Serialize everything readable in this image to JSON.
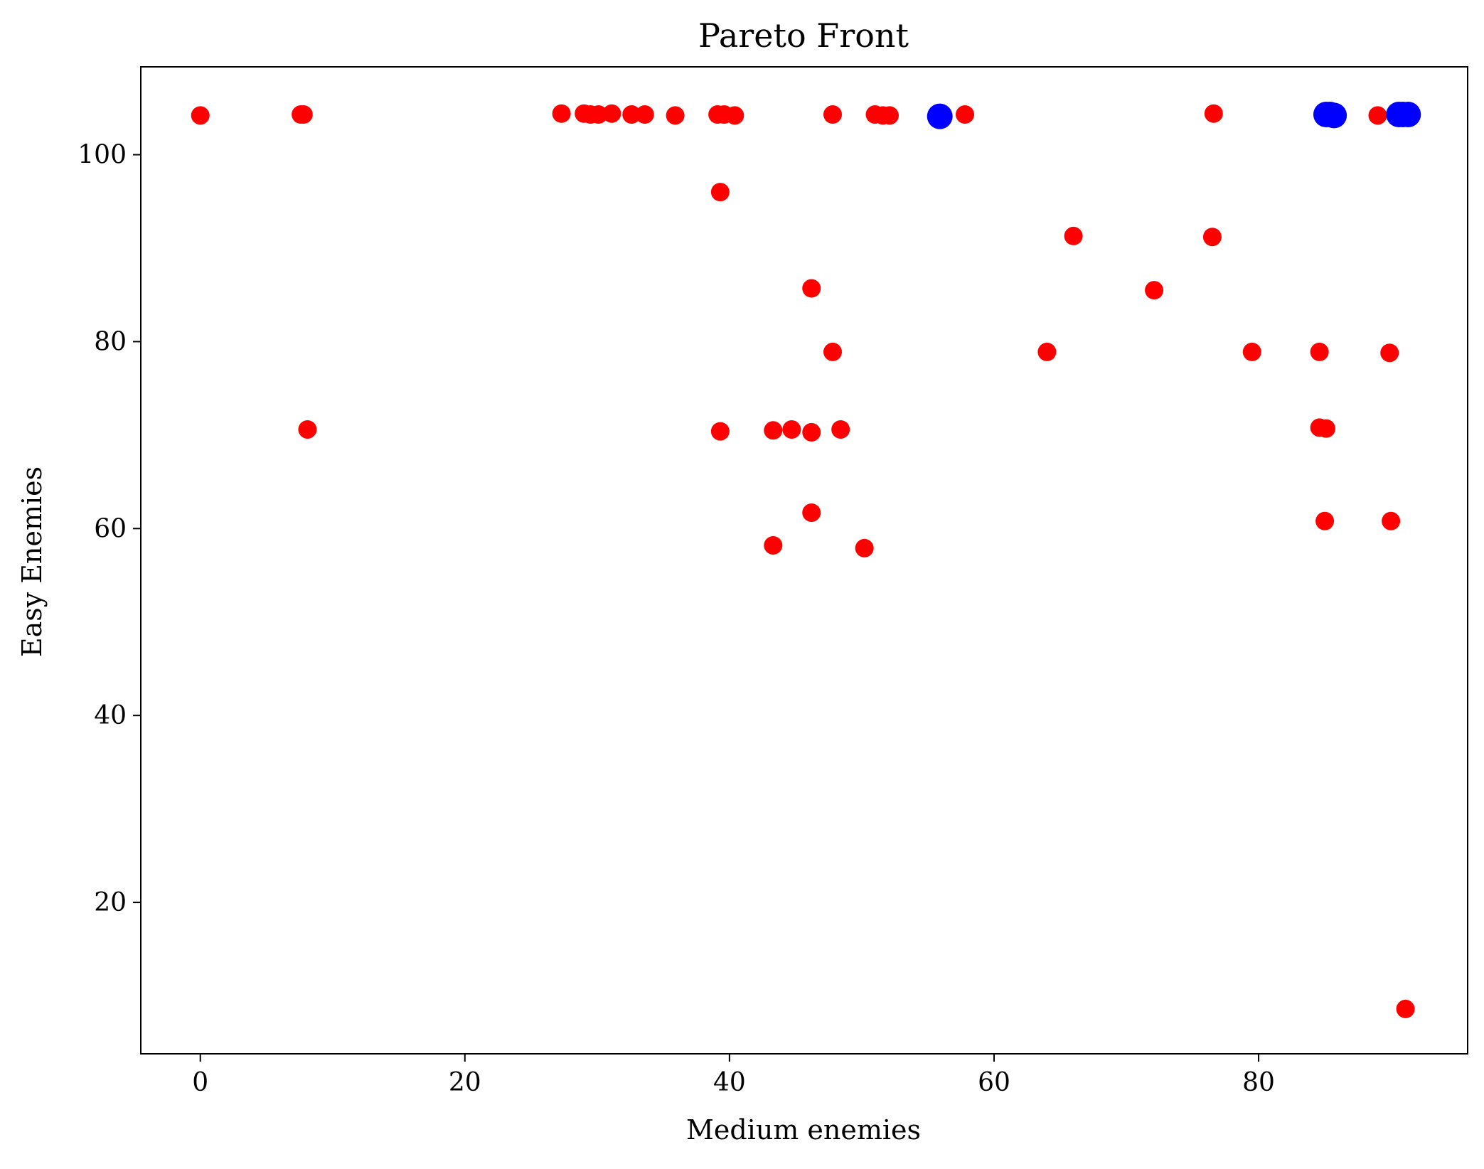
{
  "chart_data": {
    "type": "scatter",
    "title": "Pareto Front",
    "xlabel": "Medium enemies",
    "ylabel": "Easy Enemies",
    "xlim": [
      -4.5,
      95.8
    ],
    "ylim": [
      3.8,
      109.4
    ],
    "xticks": [
      0,
      20,
      40,
      60,
      80
    ],
    "yticks": [
      20,
      40,
      60,
      80,
      100
    ],
    "grid": false,
    "legend": "none",
    "series": [
      {
        "color": "#ff0000",
        "marker": "circle-small",
        "points": [
          [
            0,
            104.2
          ],
          [
            7.6,
            104.3
          ],
          [
            7.8,
            104.3
          ],
          [
            27.3,
            104.4
          ],
          [
            29,
            104.4
          ],
          [
            29.5,
            104.3
          ],
          [
            30.1,
            104.3
          ],
          [
            31.1,
            104.4
          ],
          [
            32.6,
            104.3
          ],
          [
            33.6,
            104.3
          ],
          [
            35.9,
            104.2
          ],
          [
            39.1,
            104.3
          ],
          [
            39.6,
            104.3
          ],
          [
            40.4,
            104.2
          ],
          [
            47.8,
            104.3
          ],
          [
            51,
            104.3
          ],
          [
            51.6,
            104.2
          ],
          [
            52.1,
            104.2
          ],
          [
            57.8,
            104.3
          ],
          [
            76.6,
            104.4
          ],
          [
            89,
            104.2
          ],
          [
            39.3,
            96
          ],
          [
            66,
            91.3
          ],
          [
            76.5,
            91.2
          ],
          [
            46.2,
            85.7
          ],
          [
            72.1,
            85.5
          ],
          [
            47.8,
            78.9
          ],
          [
            64,
            78.9
          ],
          [
            79.5,
            78.9
          ],
          [
            84.6,
            78.9
          ],
          [
            89.9,
            78.8
          ],
          [
            8.1,
            70.6
          ],
          [
            39.3,
            70.4
          ],
          [
            43.3,
            70.5
          ],
          [
            44.7,
            70.6
          ],
          [
            46.2,
            70.3
          ],
          [
            48.4,
            70.6
          ],
          [
            84.6,
            70.8
          ],
          [
            85.1,
            70.7
          ],
          [
            46.2,
            61.7
          ],
          [
            85,
            60.8
          ],
          [
            90,
            60.8
          ],
          [
            43.3,
            58.2
          ],
          [
            50.2,
            57.9
          ],
          [
            91.1,
            8.6
          ]
        ]
      },
      {
        "color": "#0000ff",
        "marker": "circle-large",
        "points": [
          [
            55.9,
            104.1
          ],
          [
            85.1,
            104.3
          ],
          [
            85.4,
            104.3
          ],
          [
            85.7,
            104.2
          ],
          [
            90.6,
            104.3
          ],
          [
            90.9,
            104.3
          ],
          [
            91.3,
            104.3
          ]
        ]
      }
    ]
  }
}
